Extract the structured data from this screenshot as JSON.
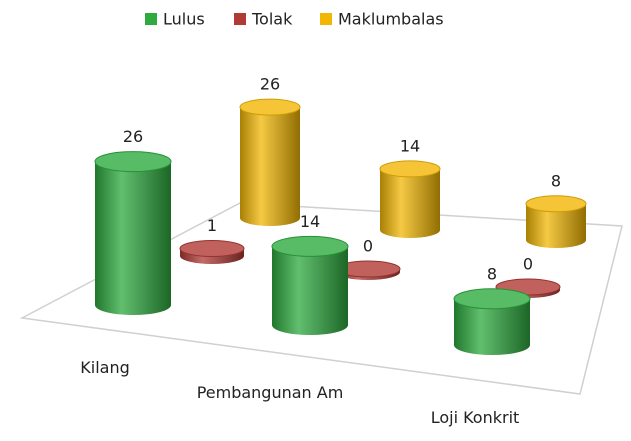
{
  "chart_data": {
    "type": "bar3d",
    "categories": [
      "Kilang",
      "Pembangunan Am",
      "Loji Konkrit"
    ],
    "series": [
      {
        "name": "Lulus",
        "color": "#2eaa3f",
        "values": [
          26,
          14,
          8
        ]
      },
      {
        "name": "Tolak",
        "color": "#b03a36",
        "values": [
          1,
          0,
          0
        ]
      },
      {
        "name": "Maklumbalas",
        "color": "#f2b705",
        "values": [
          26,
          14,
          8
        ]
      }
    ],
    "legend": "top"
  }
}
